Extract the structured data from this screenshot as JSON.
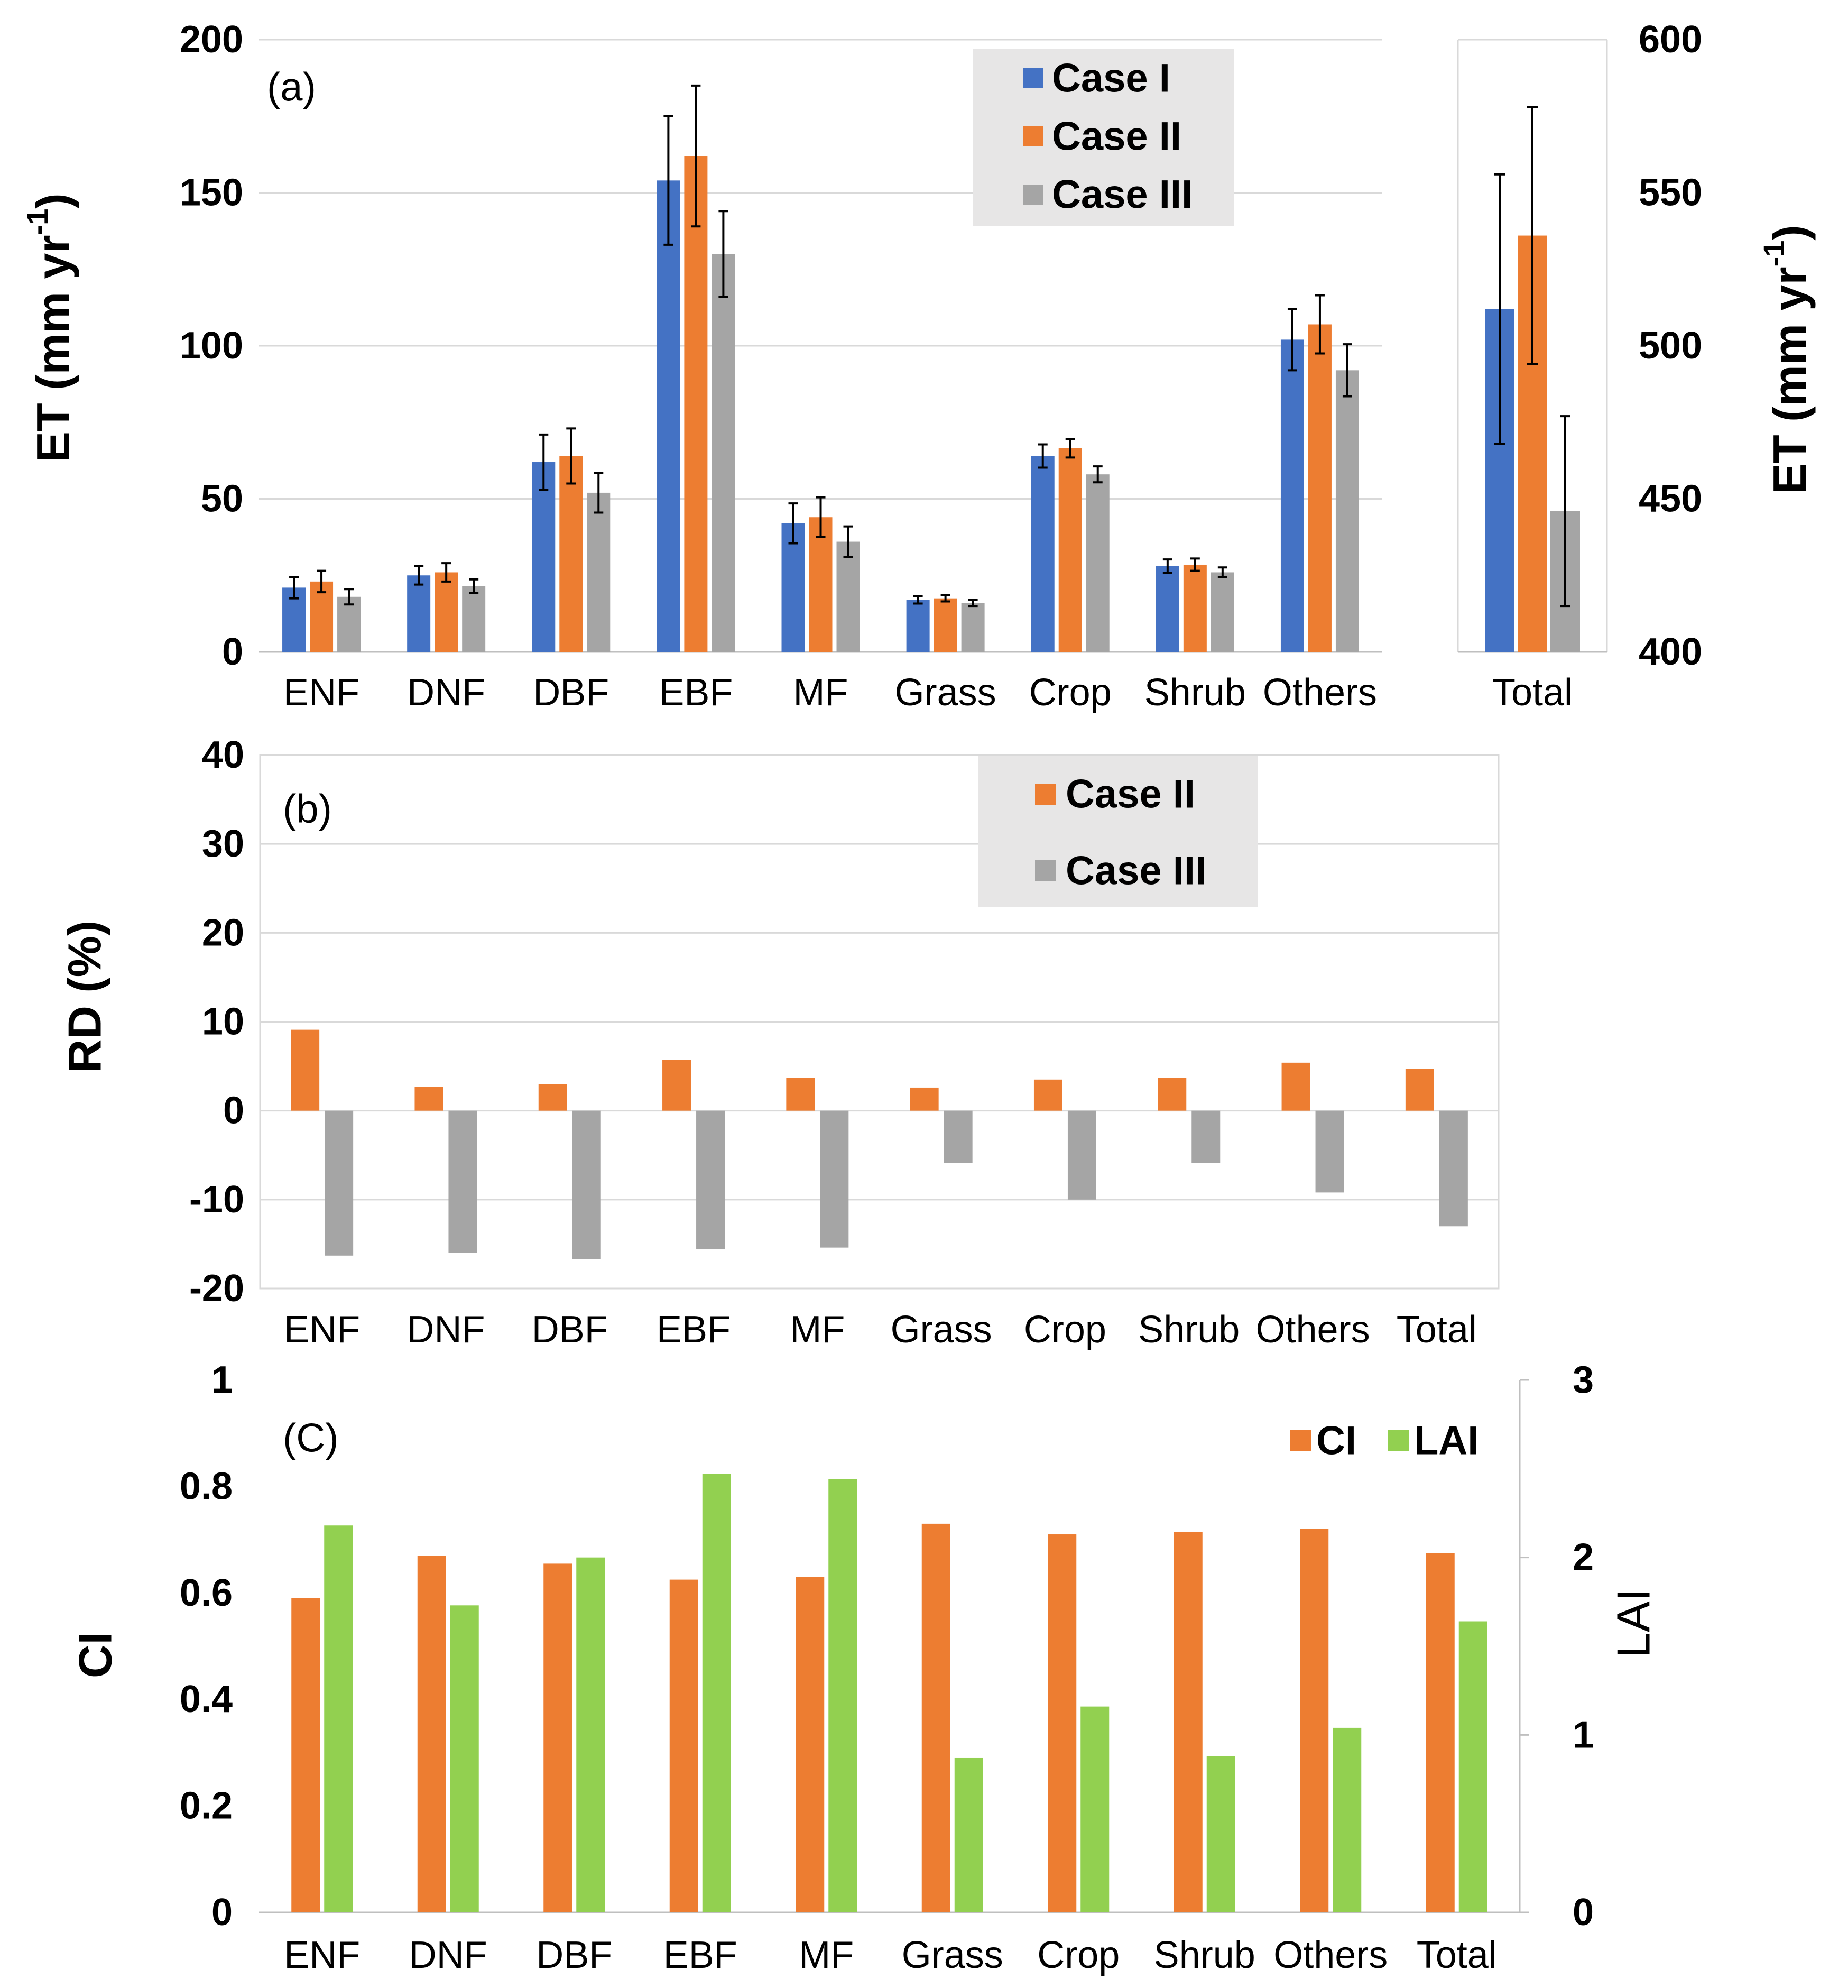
{
  "colors": {
    "case1": "#4472c4",
    "case2": "#ed7d31",
    "case3": "#a5a5a5",
    "ci": "#ed7d31",
    "lai": "#92d050",
    "legend_bg": "#e7e6e6"
  },
  "chart_data": [
    {
      "id": "a",
      "type": "bar",
      "panel_label": "(a)",
      "categories": [
        "ENF",
        "DNF",
        "DBF",
        "EBF",
        "MF",
        "Grass",
        "Crop",
        "Shrub",
        "Others"
      ],
      "ylabel": "ET (mm yr",
      "ylabel_sup": "-1",
      "ylabel_close": ")",
      "ylim": [
        0,
        200
      ],
      "yticks": [
        0,
        50,
        100,
        150,
        200
      ],
      "grid": true,
      "legend_position": "top-right",
      "series": [
        {
          "name": "Case I",
          "color": "#4472c4",
          "values": [
            21,
            25,
            62,
            154,
            42,
            17,
            64,
            28,
            102
          ],
          "errors": [
            3.5,
            3,
            9,
            21,
            6.5,
            1.2,
            3.8,
            2.2,
            10
          ]
        },
        {
          "name": "Case II",
          "color": "#ed7d31",
          "values": [
            23,
            26,
            64,
            162,
            44,
            17.5,
            66.5,
            28.5,
            107
          ],
          "errors": [
            3.5,
            3,
            9,
            23,
            6.5,
            1.0,
            3.0,
            2.0,
            9.5
          ]
        },
        {
          "name": "Case III",
          "color": "#a5a5a5",
          "values": [
            18,
            21.5,
            52,
            130,
            36,
            16,
            58,
            26,
            92
          ],
          "errors": [
            2.5,
            2.2,
            6.5,
            14,
            5,
            1.0,
            2.6,
            1.6,
            8.5
          ]
        }
      ],
      "inset": {
        "categories": [
          "Total"
        ],
        "ylim": [
          400,
          600
        ],
        "yticks": [
          400,
          450,
          500,
          550,
          600
        ],
        "ylabel": "ET (mm yr",
        "ylabel_sup": "-1",
        "ylabel_close": ")",
        "series": [
          {
            "name": "Case I",
            "color": "#4472c4",
            "values": [
              512
            ],
            "errors": [
              44
            ]
          },
          {
            "name": "Case II",
            "color": "#ed7d31",
            "values": [
              536
            ],
            "errors": [
              42
            ]
          },
          {
            "name": "Case III",
            "color": "#a5a5a5",
            "values": [
              446
            ],
            "errors": [
              31
            ]
          }
        ]
      }
    },
    {
      "id": "b",
      "type": "bar",
      "panel_label": "(b)",
      "categories": [
        "ENF",
        "DNF",
        "DBF",
        "EBF",
        "MF",
        "Grass",
        "Crop",
        "Shrub",
        "Others",
        "Total"
      ],
      "ylabel": "RD (%)",
      "ylim": [
        -20,
        40
      ],
      "yticks": [
        -20,
        -10,
        0,
        10,
        20,
        30,
        40
      ],
      "grid": true,
      "legend_position": "top-right",
      "series": [
        {
          "name": "Case II",
          "color": "#ed7d31",
          "values": [
            9.1,
            2.7,
            3.0,
            5.7,
            3.7,
            2.6,
            3.5,
            3.7,
            5.4,
            4.7
          ]
        },
        {
          "name": "Case III",
          "color": "#a5a5a5",
          "values": [
            -16.3,
            -16.0,
            -16.7,
            -15.6,
            -15.4,
            -5.9,
            -10.0,
            -5.9,
            -9.2,
            -13.0
          ]
        }
      ]
    },
    {
      "id": "c",
      "type": "bar",
      "panel_label": "(C)",
      "categories": [
        "ENF",
        "DNF",
        "DBF",
        "EBF",
        "MF",
        "Grass",
        "Crop",
        "Shrub",
        "Others",
        "Total"
      ],
      "ylabel": "CI",
      "ylim": [
        0,
        1
      ],
      "yticks": [
        "0",
        "0.2",
        "0.4",
        "0.6",
        "0.8",
        "1"
      ],
      "y2label": "LAI",
      "y2lim": [
        0,
        3
      ],
      "y2ticks": [
        0,
        1,
        2,
        3
      ],
      "grid": false,
      "legend_position": "top-right",
      "series": [
        {
          "name": "CI",
          "color": "#ed7d31",
          "axis": "left",
          "values": [
            0.59,
            0.67,
            0.655,
            0.625,
            0.63,
            0.73,
            0.71,
            0.715,
            0.72,
            0.675
          ]
        },
        {
          "name": "LAI",
          "color": "#92d050",
          "axis": "right",
          "values": [
            2.18,
            1.73,
            2.0,
            2.47,
            2.44,
            0.87,
            1.16,
            0.88,
            1.04,
            1.64
          ]
        }
      ]
    }
  ]
}
